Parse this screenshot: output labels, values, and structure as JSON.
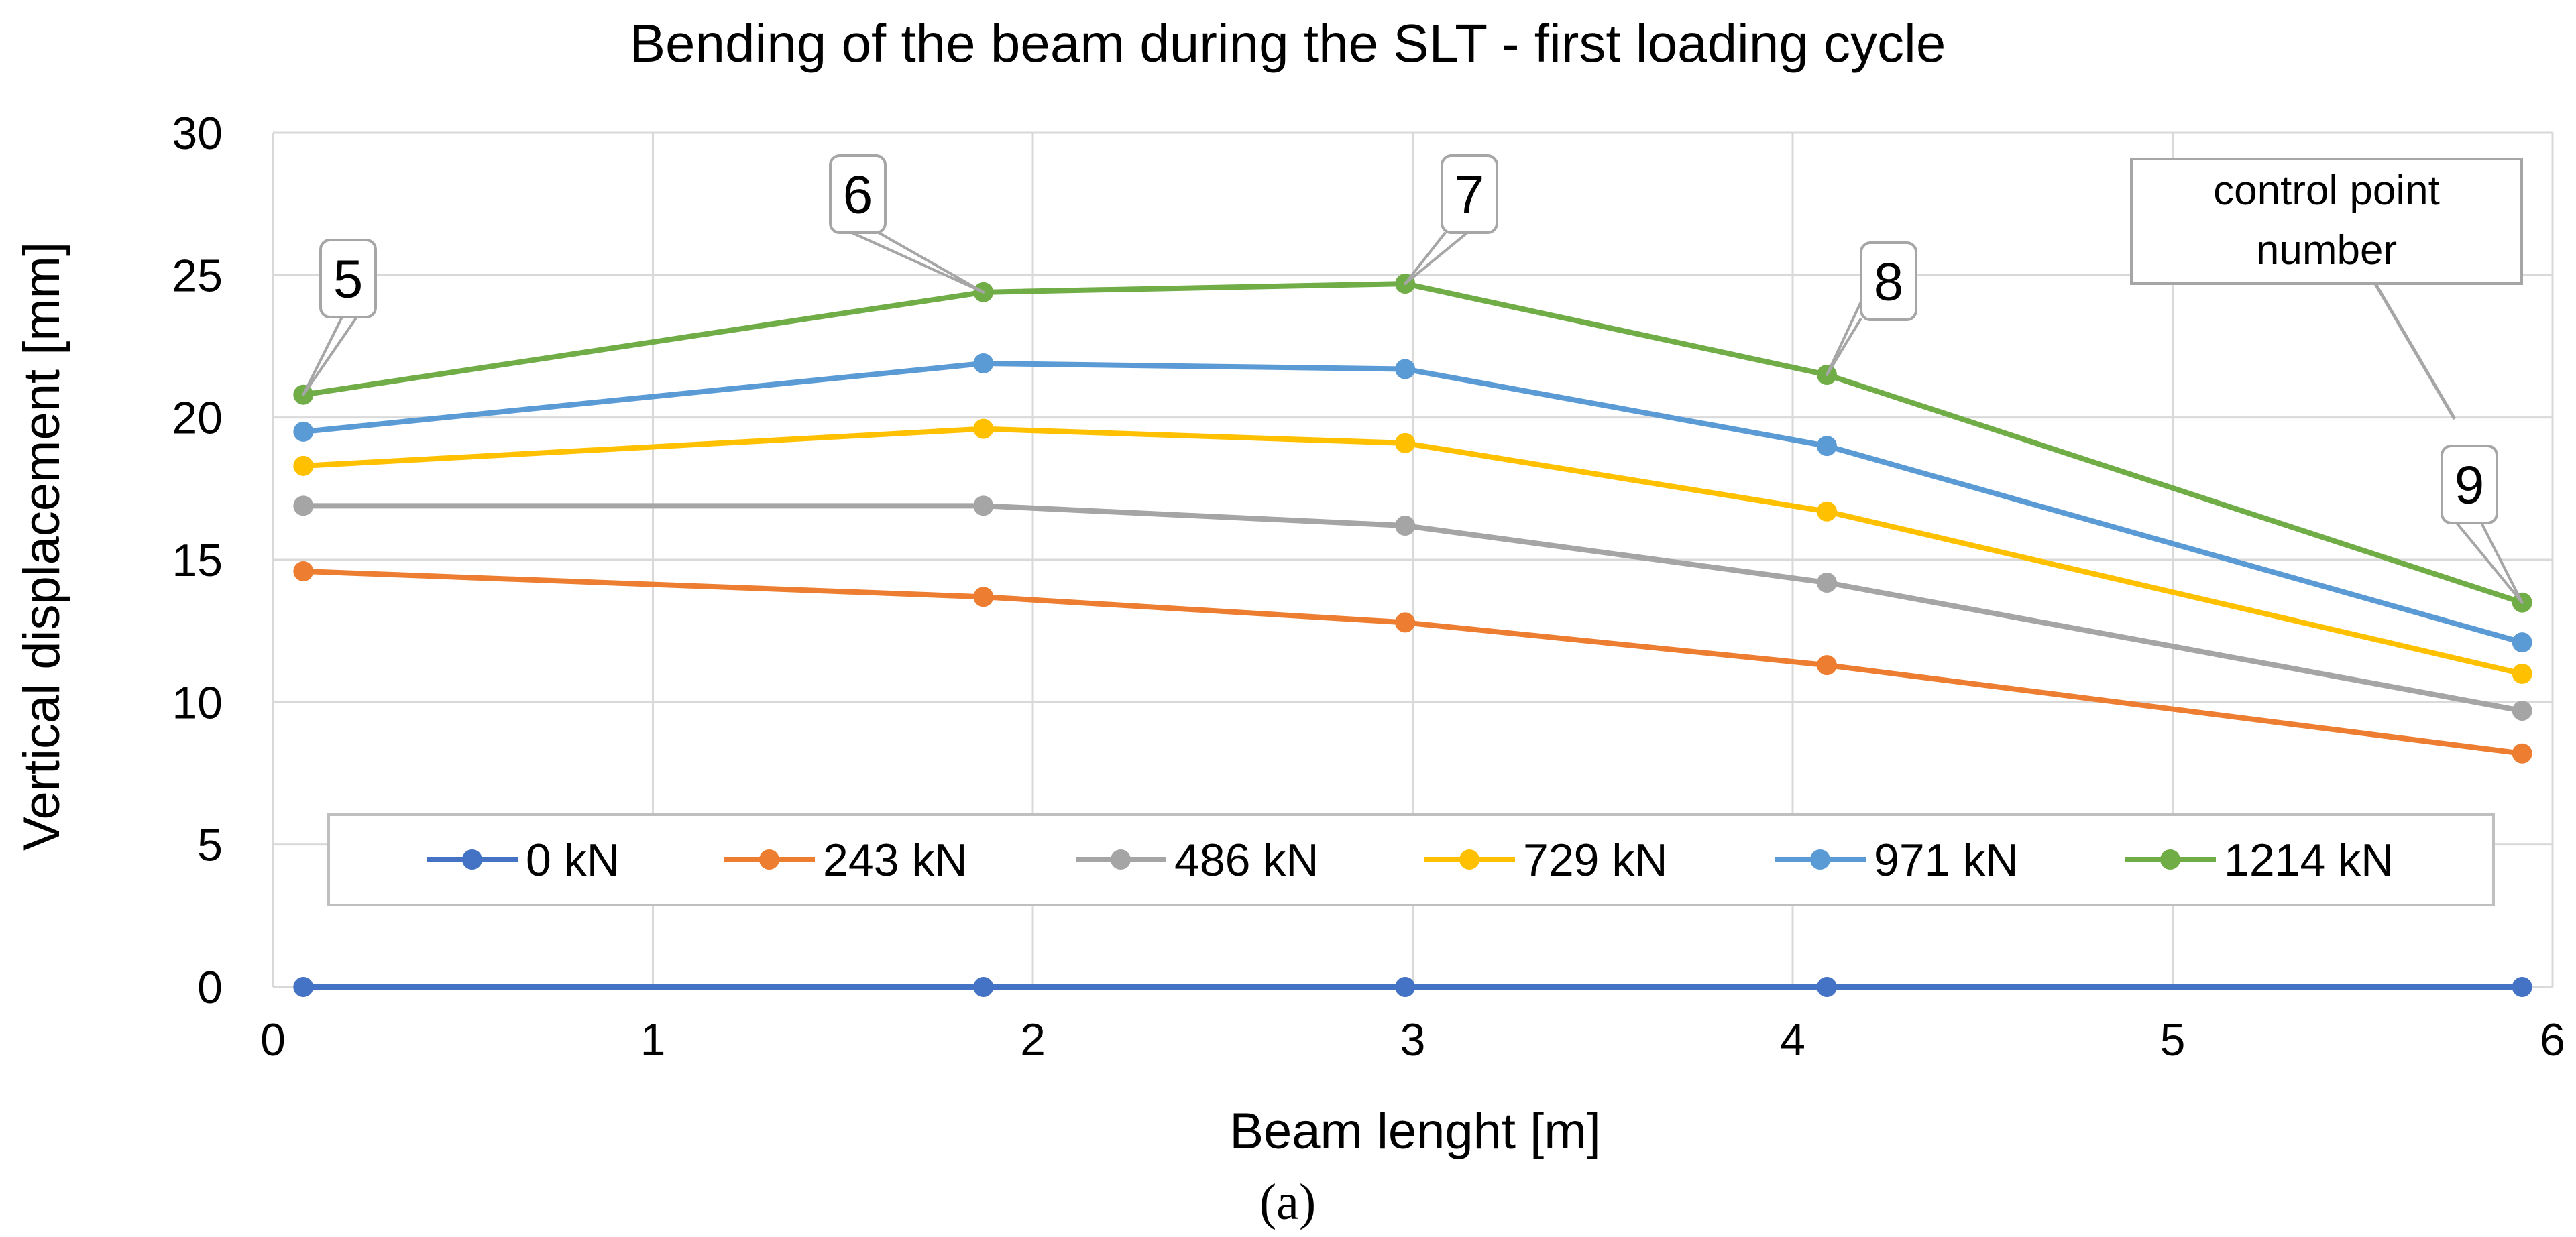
{
  "chart_data": {
    "type": "line",
    "title": "Bending of the beam during the SLT - first loading cycle",
    "xlabel": "Beam lenght [m]",
    "ylabel": "Vertical displacement [mm]",
    "xlim": [
      0,
      6
    ],
    "ylim": [
      0,
      30
    ],
    "xticks": [
      0,
      1,
      2,
      3,
      4,
      5,
      6
    ],
    "yticks": [
      0,
      5,
      10,
      15,
      20,
      25,
      30
    ],
    "grid": true,
    "legend_position": "bottom-inside",
    "x": [
      0.08,
      1.87,
      2.98,
      4.09,
      5.92
    ],
    "series": [
      {
        "name": "0 kN",
        "color": "#4472C4",
        "values": [
          0,
          0,
          0,
          0,
          0
        ]
      },
      {
        "name": "243 kN",
        "color": "#ED7D31",
        "values": [
          14.6,
          13.7,
          12.8,
          11.3,
          8.2
        ]
      },
      {
        "name": "486 kN",
        "color": "#A5A5A5",
        "values": [
          16.9,
          16.9,
          16.2,
          14.2,
          9.7
        ]
      },
      {
        "name": "729 kN",
        "color": "#FFC000",
        "values": [
          18.3,
          19.6,
          19.1,
          16.7,
          11.0
        ]
      },
      {
        "name": "971 kN",
        "color": "#5B9BD5",
        "values": [
          19.5,
          21.9,
          21.7,
          19.0,
          12.1
        ]
      },
      {
        "name": "1214 kN",
        "color": "#70AD47",
        "values": [
          20.8,
          24.4,
          24.7,
          21.5,
          13.5
        ]
      }
    ],
    "annotations": [
      {
        "text": "5",
        "point_index": 0
      },
      {
        "text": "6",
        "point_index": 1
      },
      {
        "text": "7",
        "point_index": 2
      },
      {
        "text": "8",
        "point_index": 3
      },
      {
        "text": "9",
        "point_index": 4
      }
    ],
    "annotation_legend": {
      "line1": "control point",
      "line2": "number"
    }
  },
  "caption": "(a)"
}
